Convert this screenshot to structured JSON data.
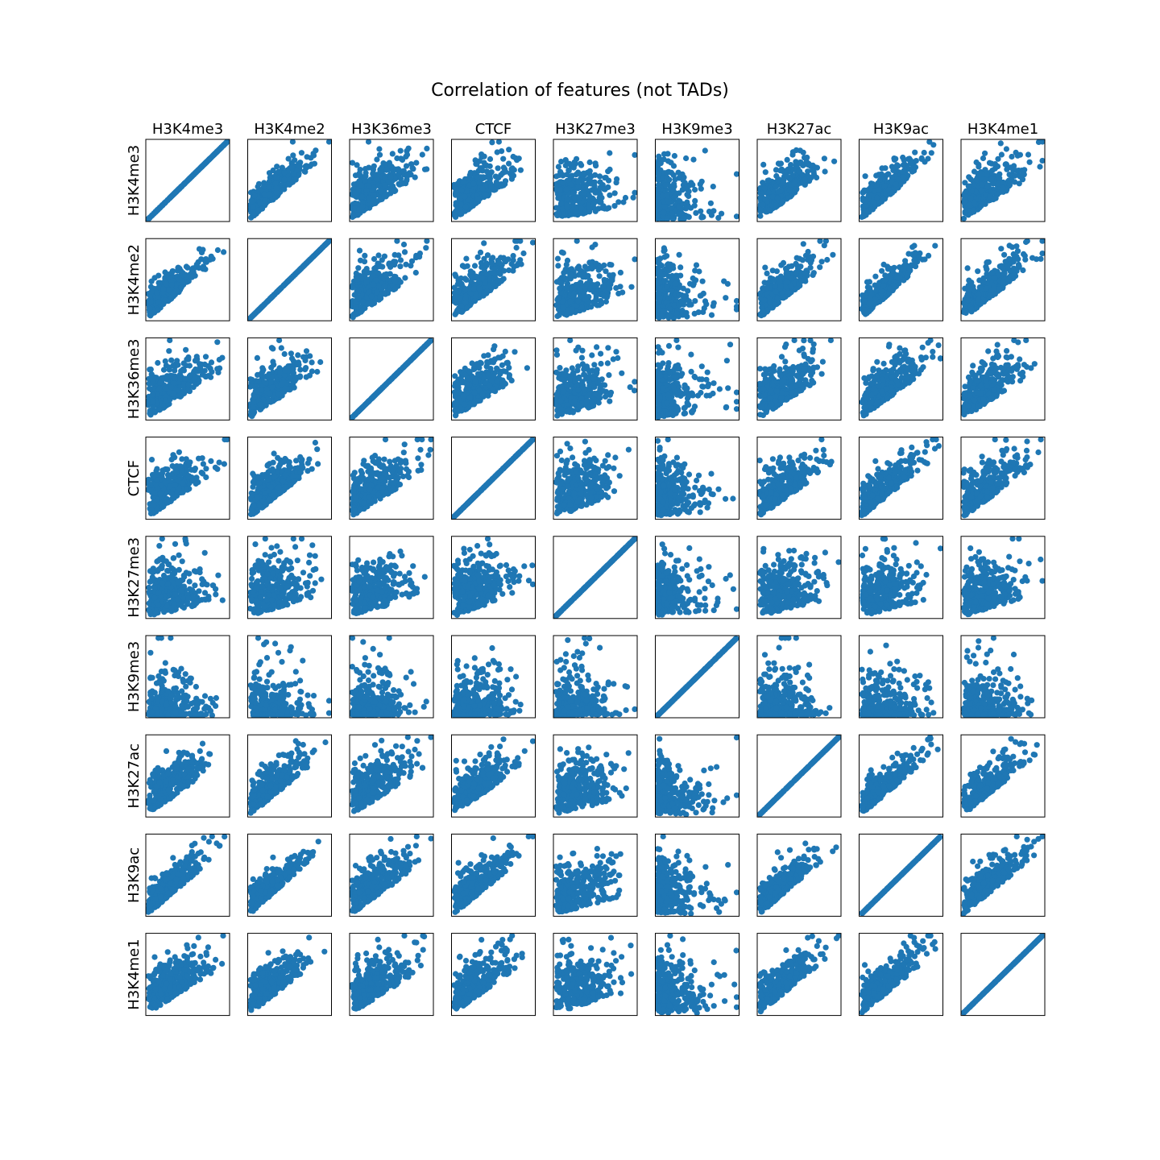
{
  "chart_data": {
    "type": "scatter",
    "layout": "scatter-matrix",
    "title": "Correlation of features (not TADs)",
    "features": [
      "H3K4me3",
      "H3K4me2",
      "H3K36me3",
      "CTCF",
      "H3K27me3",
      "H3K9me3",
      "H3K27ac",
      "H3K9ac",
      "H3K4me1"
    ],
    "marker_color": "#1f77b4",
    "axes_ticks": false,
    "grid": false,
    "diagonal": "identity",
    "approx_correlation": [
      [
        1.0,
        0.85,
        0.6,
        0.65,
        0.15,
        -0.05,
        0.7,
        0.85,
        0.6
      ],
      [
        0.85,
        1.0,
        0.65,
        0.75,
        0.25,
        0.0,
        0.8,
        0.9,
        0.75
      ],
      [
        0.6,
        0.65,
        1.0,
        0.6,
        0.25,
        0.05,
        0.6,
        0.7,
        0.6
      ],
      [
        0.65,
        0.75,
        0.6,
        1.0,
        0.3,
        0.05,
        0.7,
        0.8,
        0.7
      ],
      [
        0.15,
        0.25,
        0.25,
        0.3,
        1.0,
        0.05,
        0.2,
        0.2,
        0.25
      ],
      [
        -0.05,
        0.0,
        0.05,
        0.05,
        0.05,
        1.0,
        0.0,
        0.0,
        0.0
      ],
      [
        0.7,
        0.8,
        0.6,
        0.7,
        0.2,
        0.0,
        1.0,
        0.85,
        0.8
      ],
      [
        0.85,
        0.9,
        0.7,
        0.8,
        0.2,
        0.0,
        0.85,
        1.0,
        0.8
      ],
      [
        0.6,
        0.75,
        0.6,
        0.7,
        0.25,
        0.0,
        0.8,
        0.8,
        1.0
      ]
    ],
    "xlim": [
      0,
      1
    ],
    "ylim": [
      0,
      1
    ]
  }
}
